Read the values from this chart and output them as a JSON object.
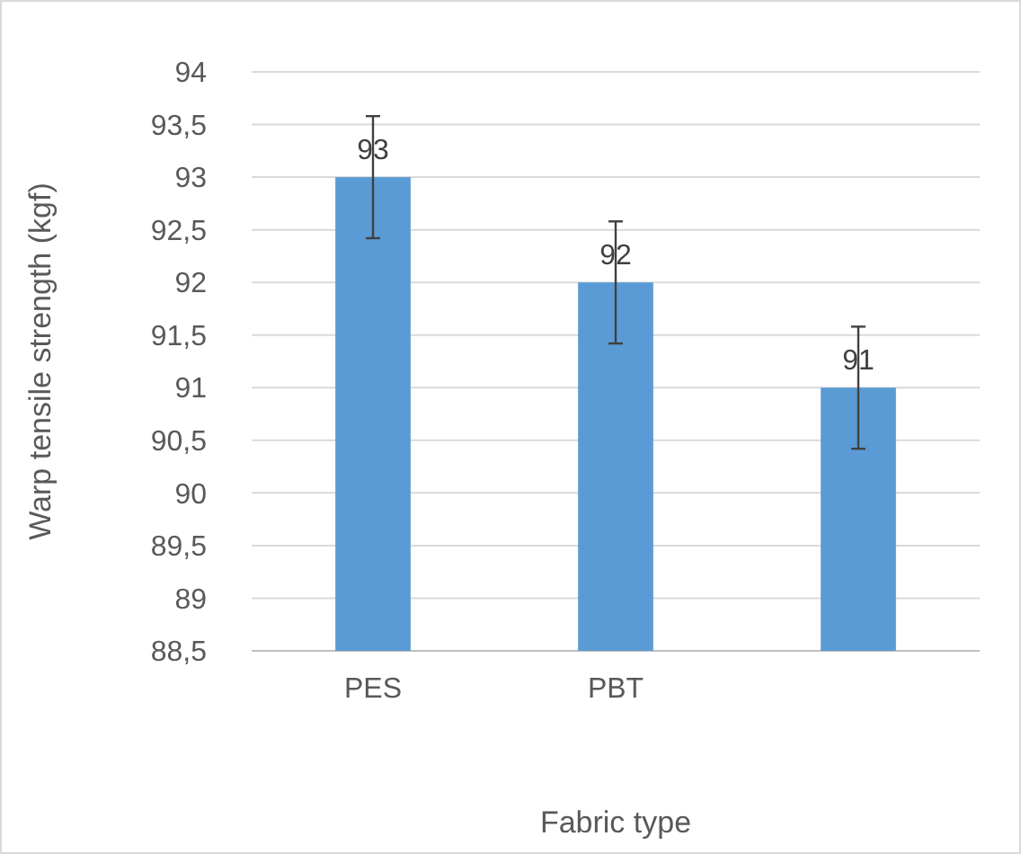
{
  "chart_data": {
    "type": "bar",
    "xlabel": "Fabric type",
    "ylabel": "Warp tensile strength (kgf)",
    "categories": [
      "PES",
      "PBT",
      null
    ],
    "values": [
      93,
      92,
      91
    ],
    "color": "#5b9bd5",
    "errors": [
      0.58,
      0.58,
      0.58
    ],
    "data_labels": true,
    "ylim": [
      88.5,
      94
    ],
    "yticks": [
      {
        "value": 88.5,
        "label": "88,5"
      },
      89,
      {
        "value": 89.5,
        "label": "89,5"
      },
      90,
      {
        "value": 90.5,
        "label": "90,5"
      },
      91,
      {
        "value": 91.5,
        "label": "91,5"
      },
      92,
      {
        "value": 92.5,
        "label": "92,5"
      },
      93,
      {
        "value": 93.5,
        "label": "93,5"
      },
      94
    ],
    "grid": "y"
  }
}
